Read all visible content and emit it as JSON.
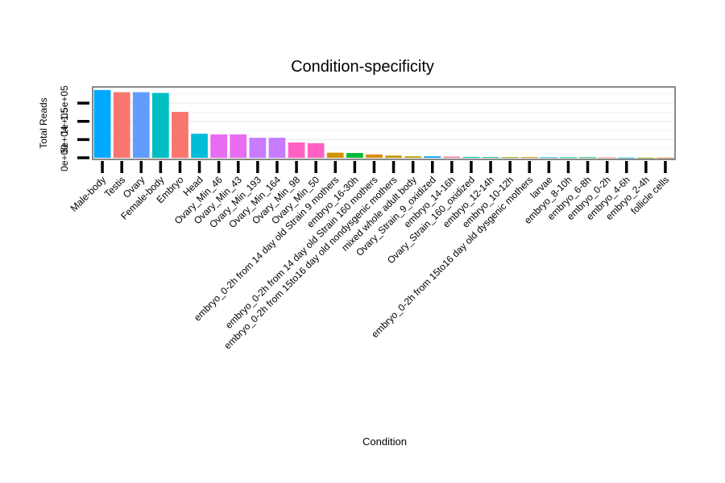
{
  "chart_data": {
    "type": "bar",
    "title": "Condition-specificity",
    "xlabel": "Condition",
    "ylabel": "Total Reads",
    "ylim": [
      0,
      190000
    ],
    "y_ticks": [
      0,
      50000,
      100000,
      150000
    ],
    "y_tick_labels": [
      "0e+00",
      "5e+04",
      "1e+05",
      "1.5e+05"
    ],
    "categories": [
      "Male-body",
      "Testis",
      "Ovary",
      "Female-body",
      "Embryo",
      "Head",
      "Ovary_Min_46",
      "Ovary_Min_43",
      "Ovary_Min_193",
      "Ovary_Min_164",
      "Ovary_Min_98",
      "Ovary_Min_50",
      "embryo_0-2h from 14 day old Strain 9 mothers",
      "embryo_16-30h",
      "embryo_0-2h from 14 day old Strain 160 mothers",
      "embryo_0-2h from 15to16 day old nondysgenic mothers",
      "mixed whole adult body",
      "Ovary_Strain_9_oxidized",
      "embryo_14-16h",
      "Ovary_Strain_160_oxidized",
      "embryo_12-14h",
      "embryo_10-12h",
      "embryo_0-2h from 15to16 day old dysgenic mothers",
      "larvae",
      "embryo_8-10h",
      "embryo_6-8h",
      "embryo_0-2h",
      "embryo_4-6h",
      "embryo_2-4h",
      "follicle cells"
    ],
    "values": [
      186000,
      180000,
      180000,
      178000,
      126000,
      66000,
      64000,
      64000,
      55000,
      55000,
      42000,
      40000,
      14000,
      13000,
      9000,
      6000,
      4000,
      4000,
      3000,
      2500,
      2000,
      2000,
      2000,
      1500,
      1500,
      1500,
      1000,
      500,
      300,
      200
    ],
    "colors": [
      "#00A9FF",
      "#F8766D",
      "#619CFF",
      "#00BFC4",
      "#F8766D",
      "#00BCD8",
      "#E76BF3",
      "#E76BF3",
      "#C77CFF",
      "#C77CFF",
      "#FF61C3",
      "#FF61C3",
      "#D39200",
      "#00BA38",
      "#DB8E00",
      "#C49A00",
      "#AEA200",
      "#00A5FF",
      "#FF6C91",
      "#00C1A3",
      "#00BF7D",
      "#93AA00",
      "#D89000",
      "#00B8E7",
      "#00C08B",
      "#00BB4E",
      "#F8766D",
      "#00B0F6",
      "#8AAB00",
      "#E68613"
    ]
  }
}
